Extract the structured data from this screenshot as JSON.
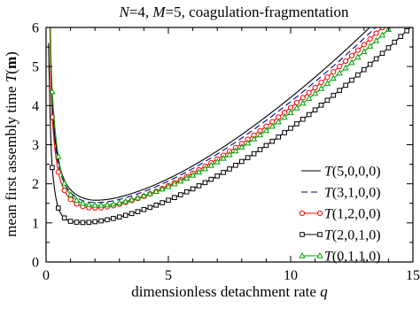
{
  "chart_data": {
    "type": "line",
    "title_parts": [
      "N",
      "=4, ",
      "M",
      "=5, coagulation-fragmentation"
    ],
    "xlabel_parts": [
      "dimensionless detachment rate ",
      "q"
    ],
    "ylabel_parts": [
      "mean first assembly time ",
      "T",
      "(",
      "m",
      ")"
    ],
    "xlim": [
      0,
      15
    ],
    "ylim": [
      0,
      6
    ],
    "xticks": [
      0,
      5,
      10,
      15
    ],
    "yticks": [
      0,
      1,
      2,
      3,
      4,
      5,
      6
    ],
    "grid": false,
    "legend_position": "center-right",
    "series": [
      {
        "name": "T(5,0,0,0)",
        "label_parts": [
          "T",
          "(5,0,0,0)"
        ],
        "color": "#000000",
        "dash": "",
        "marker": "none",
        "x": [
          0.1,
          0.2,
          0.3,
          0.4,
          0.5,
          0.6,
          0.8,
          1.0,
          1.2,
          1.5,
          2.0,
          2.5,
          3,
          4,
          5,
          6,
          7,
          8,
          9,
          10,
          11,
          12,
          13,
          14,
          15
        ],
        "y": [
          8.6,
          4.8,
          3.6,
          3.0,
          2.6,
          2.35,
          2.03,
          1.85,
          1.74,
          1.64,
          1.58,
          1.6,
          1.66,
          1.86,
          2.13,
          2.46,
          2.84,
          3.26,
          3.72,
          4.21,
          4.73,
          5.28,
          5.86,
          6.47,
          7.1
        ]
      },
      {
        "name": "T(3,1,0,0)",
        "label_parts": [
          "T",
          "(3,1,0,0)"
        ],
        "color": "#00008b",
        "dash": "7,4",
        "marker": "none",
        "x": [
          0.1,
          0.2,
          0.3,
          0.4,
          0.5,
          0.6,
          0.8,
          1.0,
          1.2,
          1.5,
          2.0,
          2.5,
          3,
          4,
          5,
          6,
          7,
          8,
          9,
          10,
          11,
          12,
          13,
          14,
          15
        ],
        "y": [
          8.4,
          4.7,
          3.5,
          2.9,
          2.5,
          2.25,
          1.95,
          1.78,
          1.67,
          1.57,
          1.52,
          1.54,
          1.6,
          1.8,
          2.07,
          2.39,
          2.76,
          3.17,
          3.62,
          4.1,
          4.61,
          5.15,
          5.72,
          6.31,
          6.93
        ]
      },
      {
        "name": "T(1,2,0,0)",
        "label_parts": [
          "T",
          "(1,2,0,0)"
        ],
        "color": "#ff0000",
        "dash": "",
        "marker": "circle",
        "x": [
          0.1,
          0.2,
          0.3,
          0.4,
          0.5,
          0.6,
          0.8,
          1.0,
          1.2,
          1.5,
          2.0,
          2.5,
          3,
          4,
          5,
          6,
          7,
          8,
          9,
          10,
          11,
          12,
          13,
          14,
          15
        ],
        "y": [
          8.2,
          4.5,
          3.3,
          2.7,
          2.3,
          2.06,
          1.77,
          1.6,
          1.5,
          1.42,
          1.38,
          1.41,
          1.48,
          1.68,
          1.95,
          2.27,
          2.63,
          3.03,
          3.47,
          3.95,
          4.46,
          5.0,
          5.56,
          6.15,
          6.77
        ]
      },
      {
        "name": "T(2,0,1,0)",
        "label_parts": [
          "T",
          "(2,0,1,0)"
        ],
        "color": "#000000",
        "dash": "",
        "marker": "square",
        "x": [
          0.1,
          0.2,
          0.3,
          0.4,
          0.5,
          0.6,
          0.8,
          1.0,
          1.2,
          1.5,
          2.0,
          2.5,
          3,
          4,
          5,
          6,
          7,
          8,
          9,
          10,
          11,
          12,
          13,
          14,
          15
        ],
        "y": [
          5.6,
          3.0,
          2.1,
          1.65,
          1.38,
          1.24,
          1.1,
          1.04,
          1.02,
          1.01,
          1.03,
          1.08,
          1.15,
          1.34,
          1.58,
          1.87,
          2.2,
          2.57,
          2.98,
          3.42,
          3.89,
          4.39,
          4.92,
          5.48,
          6.06
        ]
      },
      {
        "name": "T(0,1,1,0)",
        "label_parts": [
          "T",
          "(0,1,1,0)"
        ],
        "color": "#00a000",
        "dash": "",
        "marker": "triangle",
        "x": [
          0.1,
          0.2,
          0.3,
          0.4,
          0.5,
          0.6,
          0.8,
          1.0,
          1.2,
          1.5,
          2.0,
          2.5,
          3,
          4,
          5,
          6,
          7,
          8,
          9,
          10,
          11,
          12,
          13,
          14,
          15
        ],
        "y": [
          9.0,
          5.2,
          3.9,
          3.2,
          2.7,
          2.35,
          1.93,
          1.72,
          1.6,
          1.5,
          1.45,
          1.46,
          1.51,
          1.69,
          1.93,
          2.22,
          2.56,
          2.94,
          3.36,
          3.82,
          4.31,
          4.83,
          5.38,
          5.95,
          6.56
        ]
      }
    ]
  }
}
